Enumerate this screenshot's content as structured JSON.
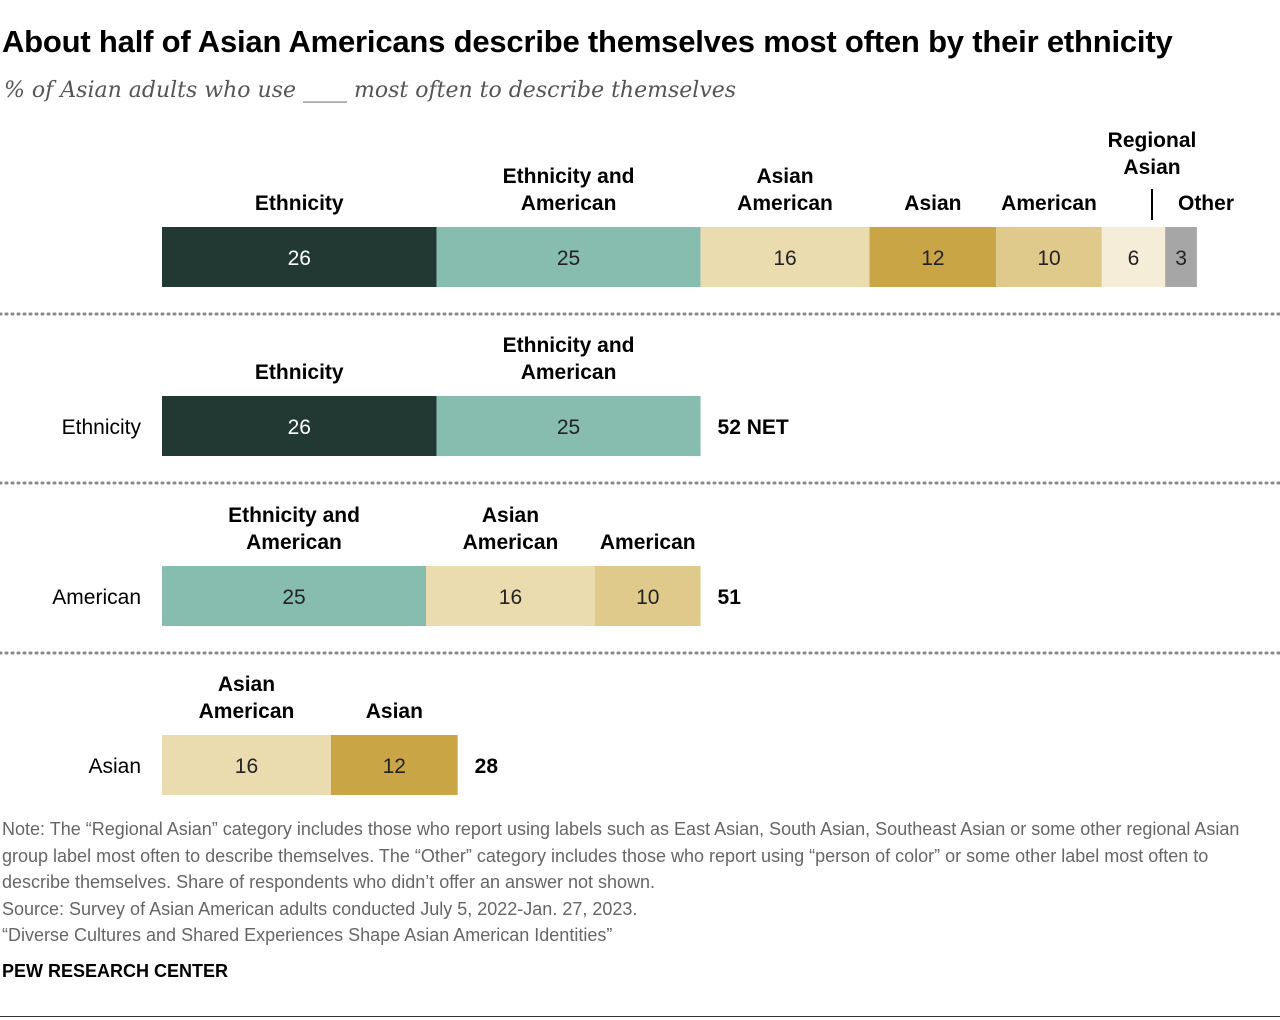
{
  "title": "About half of Asian Americans describe themselves most often by their ethnicity",
  "subtitle": "% of Asian adults who use ____ most often to describe themselves",
  "chart_data": {
    "type": "bar",
    "orientation": "horizontal",
    "stacked": true,
    "rows": [
      {
        "label": "",
        "segments": [
          {
            "name": "Ethnicity",
            "value": 26,
            "color": "#223933"
          },
          {
            "name": "Ethnicity and American",
            "value": 25,
            "color": "#87BDAE"
          },
          {
            "name": "Asian American",
            "value": 16,
            "color": "#EBDCB0"
          },
          {
            "name": "Asian",
            "value": 12,
            "color": "#C9A546"
          },
          {
            "name": "American",
            "value": 10,
            "color": "#DFCA8B"
          },
          {
            "name": "Regional Asian",
            "value": 6,
            "color": "#F5EDD8"
          },
          {
            "name": "Other",
            "value": 3,
            "color": "#A6A6A6"
          }
        ],
        "total_label": ""
      },
      {
        "label": "Ethnicity",
        "segments": [
          {
            "name": "Ethnicity",
            "value": 26,
            "color": "#223933"
          },
          {
            "name": "Ethnicity and American",
            "value": 25,
            "color": "#87BDAE"
          }
        ],
        "total_label": "52 NET"
      },
      {
        "label": "American",
        "segments": [
          {
            "name": "Ethnicity and American",
            "value": 25,
            "color": "#87BDAE"
          },
          {
            "name": "Asian American",
            "value": 16,
            "color": "#EBDCB0"
          },
          {
            "name": "American",
            "value": 10,
            "color": "#DFCA8B"
          }
        ],
        "total_label": "51"
      },
      {
        "label": "Asian",
        "segments": [
          {
            "name": "Asian American",
            "value": 16,
            "color": "#EBDCB0"
          },
          {
            "name": "Asian",
            "value": 12,
            "color": "#C9A546"
          }
        ],
        "total_label": "28"
      }
    ]
  },
  "footer": {
    "note": "Note: The “Regional Asian” category includes those who report using labels such as East Asian, South Asian, Southeast Asian or some other regional Asian group label most often to describe themselves. The “Other” category includes those who report using “person of color” or some other label most often to describe themselves. Share of respondents who didn’t offer an answer not shown.",
    "source": "Source: Survey of Asian American adults conducted July 5, 2022-Jan. 27, 2023.",
    "report": "“Diverse Cultures and Shared Experiences Shape Asian American Identities”",
    "brand": "PEW RESEARCH CENTER"
  }
}
